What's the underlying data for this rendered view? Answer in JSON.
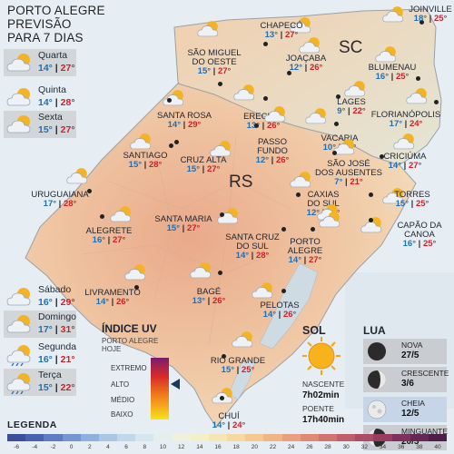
{
  "header": {
    "line1": "PORTO ALEGRE",
    "line2": "PREVISÃO",
    "line3": "PARA 7 DIAS"
  },
  "forecast": [
    {
      "day": "Quarta",
      "min": "14°",
      "max": "27°",
      "icon": "sun-cloud-icon"
    },
    {
      "day": "Quinta",
      "min": "14°",
      "max": "28°",
      "icon": "sun-cloud-icon"
    },
    {
      "day": "Sexta",
      "min": "15°",
      "max": "27°",
      "icon": "sun-cloud-icon"
    },
    {
      "day": "Sábado",
      "min": "16°",
      "max": "29°",
      "icon": "sun-cloud-icon"
    },
    {
      "day": "Domingo",
      "min": "17°",
      "max": "31°",
      "icon": "sun-cloud-icon"
    },
    {
      "day": "Segunda",
      "min": "16°",
      "max": "21°",
      "icon": "sun-rain-icon"
    },
    {
      "day": "Terça",
      "min": "15°",
      "max": "22°",
      "icon": "sun-rain-icon"
    }
  ],
  "states": {
    "sc": "SC",
    "rs": "RS"
  },
  "cities": [
    {
      "name": "JOINVILLE",
      "min": "18°",
      "max": "25°"
    },
    {
      "name": "CHAPECÓ",
      "min": "13°",
      "max": "27°"
    },
    {
      "name": "SÃO MIGUEL\nDO OESTE",
      "min": "15°",
      "max": "27°"
    },
    {
      "name": "JOAÇABA",
      "min": "12°",
      "max": "26°"
    },
    {
      "name": "BLUMENAU",
      "min": "16°",
      "max": "25°"
    },
    {
      "name": "LAGES",
      "min": "9°",
      "max": "22°"
    },
    {
      "name": "FLORIANÓPOLIS",
      "min": "17°",
      "max": "24°"
    },
    {
      "name": "SANTA ROSA",
      "min": "14°",
      "max": "29°"
    },
    {
      "name": "ERECHIM",
      "min": "13°",
      "max": "26°"
    },
    {
      "name": "PASSO\nFUNDO",
      "min": "12°",
      "max": "26°"
    },
    {
      "name": "VACARIA",
      "min": "10°",
      "max": "22°"
    },
    {
      "name": "SANTIAGO",
      "min": "15°",
      "max": "28°"
    },
    {
      "name": "CRUZ ALTA",
      "min": "15°",
      "max": "27°"
    },
    {
      "name": "SÃO JOSÉ\nDOS AUSENTES",
      "min": "7°",
      "max": "21°"
    },
    {
      "name": "CRICIÚMA",
      "min": "14°",
      "max": "27°"
    },
    {
      "name": "URUGUAIANA",
      "min": "17°",
      "max": "28°"
    },
    {
      "name": "CAXIAS\nDO SUL",
      "min": "12°",
      "max": "25°"
    },
    {
      "name": "TORRES",
      "min": "15°",
      "max": "25°"
    },
    {
      "name": "SANTA MARIA",
      "min": "15°",
      "max": "27°"
    },
    {
      "name": "ALEGRETE",
      "min": "16°",
      "max": "27°"
    },
    {
      "name": "CAPÃO DA\nCANOA",
      "min": "16°",
      "max": "25°"
    },
    {
      "name": "SANTA CRUZ\nDO SUL",
      "min": "14°",
      "max": "28°"
    },
    {
      "name": "PORTO\nALEGRE",
      "min": "14°",
      "max": "27°"
    },
    {
      "name": "LIVRAMENTO",
      "min": "14°",
      "max": "26°"
    },
    {
      "name": "BAGÉ",
      "min": "13°",
      "max": "26°"
    },
    {
      "name": "PELOTAS",
      "min": "14°",
      "max": "26°"
    },
    {
      "name": "RIO GRANDE",
      "min": "15°",
      "max": "25°"
    },
    {
      "name": "CHUÍ",
      "min": "14°",
      "max": "24°"
    }
  ],
  "uv": {
    "title": "ÍNDICE UV",
    "sub": "PORTO ALEGRE\nHOJE",
    "levels": [
      "EXTREMO",
      "ALTO",
      "MÉDIO",
      "BAIXO"
    ],
    "current": "ALTO"
  },
  "sol": {
    "title": "SOL",
    "rise_label": "NASCENTE",
    "rise": "7h02min",
    "set_label": "POENTE",
    "set": "17h40min"
  },
  "lua": {
    "title": "LUA",
    "phases": [
      {
        "name": "NOVA",
        "date": "27/5"
      },
      {
        "name": "CRESCENTE",
        "date": "3/6"
      },
      {
        "name": "CHEIA",
        "date": "12/5"
      },
      {
        "name": "MINGUANTE",
        "date": "20/5"
      }
    ]
  },
  "legend": {
    "title": "LEGENDA",
    "ticks": [
      "-6",
      "-4",
      "-2",
      "0",
      "2",
      "4",
      "6",
      "8",
      "10",
      "12",
      "14",
      "16",
      "18",
      "20",
      "22",
      "24",
      "26",
      "28",
      "30",
      "32",
      "34",
      "36",
      "38",
      "40"
    ],
    "colors": [
      "#3c4f9c",
      "#4a63b0",
      "#5c7cc4",
      "#7497d2",
      "#8fb0dc",
      "#a9c6e4",
      "#c1d8ea",
      "#d5e6ef",
      "#e4efe9",
      "#eef2dc",
      "#f3efc9",
      "#f6e6b3",
      "#f7d8a0",
      "#f5c890",
      "#f0b586",
      "#e9a07e",
      "#df8a77",
      "#d17470",
      "#c05f6a",
      "#ad4c66",
      "#983c62",
      "#80305c",
      "#672655",
      "#4f1d4a"
    ]
  }
}
